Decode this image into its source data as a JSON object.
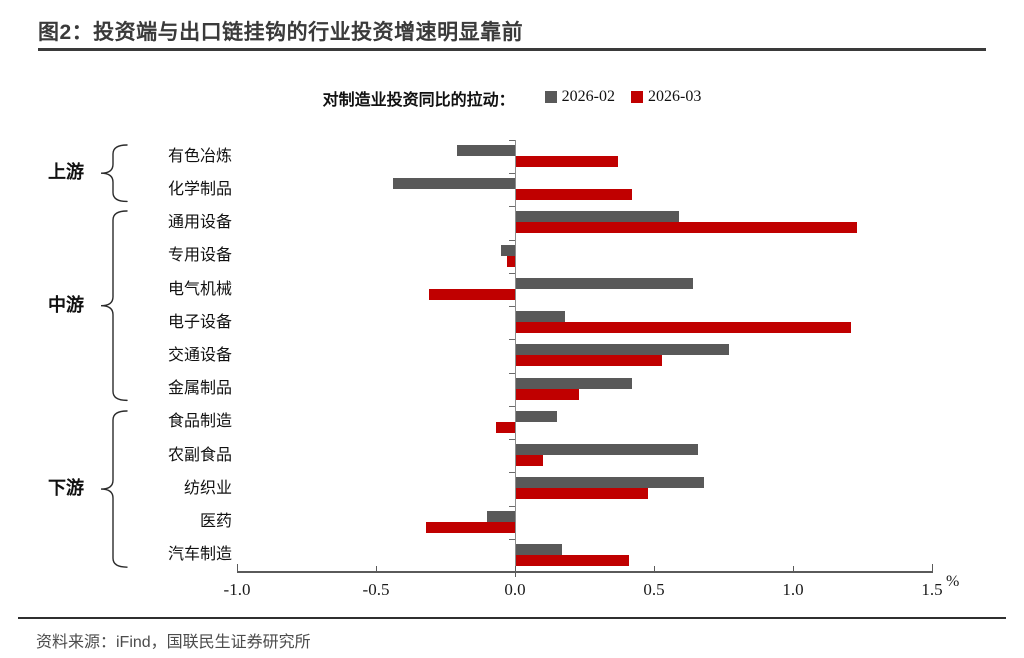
{
  "title": "图2：投资端与出口链挂钩的行业投资增速明显靠前",
  "legend": {
    "label": "对制造业投资同比的拉动：",
    "series": [
      {
        "name": "2026-02",
        "color": "#595959"
      },
      {
        "name": "2026-03",
        "color": "#C00000"
      }
    ]
  },
  "footer": "资料来源：iFind，国联民生证券研究所",
  "colors": {
    "title_text": "#3A3A3A",
    "gray_series": "#595959",
    "red_series": "#C00000",
    "axis": "#5A5A5A"
  },
  "chart_data": {
    "type": "bar",
    "orientation": "horizontal",
    "title": "对制造业投资同比的拉动",
    "xlabel": "%",
    "xlim": [
      -1.0,
      1.5
    ],
    "xticks": [
      -1.0,
      -0.5,
      0.0,
      0.5,
      1.0,
      1.5
    ],
    "xtick_labels": [
      "-1.0",
      "-0.5",
      "0.0",
      "0.5",
      "1.0",
      "1.5"
    ],
    "grid": false,
    "legend_position": "top-center",
    "groups": [
      {
        "name": "上游",
        "categories": [
          "有色冶炼",
          "化学制品"
        ]
      },
      {
        "name": "中游",
        "categories": [
          "通用设备",
          "专用设备",
          "电气机械",
          "电子设备",
          "交通设备",
          "金属制品"
        ]
      },
      {
        "name": "下游",
        "categories": [
          "食品制造",
          "农副食品",
          "纺织业",
          "医药",
          "汽车制造"
        ]
      }
    ],
    "categories": [
      "有色冶炼",
      "化学制品",
      "通用设备",
      "专用设备",
      "电气机械",
      "电子设备",
      "交通设备",
      "金属制品",
      "食品制造",
      "农副食品",
      "纺织业",
      "医药",
      "汽车制造"
    ],
    "series": [
      {
        "name": "2026-02",
        "color": "#595959",
        "values": [
          -0.21,
          -0.44,
          0.59,
          -0.05,
          0.64,
          0.18,
          0.77,
          0.42,
          0.15,
          0.66,
          0.68,
          -0.1,
          0.17
        ]
      },
      {
        "name": "2026-03",
        "color": "#C00000",
        "values": [
          0.37,
          0.42,
          1.23,
          -0.03,
          -0.31,
          1.21,
          0.53,
          0.23,
          -0.07,
          0.1,
          0.48,
          -0.32,
          0.41
        ]
      }
    ]
  }
}
